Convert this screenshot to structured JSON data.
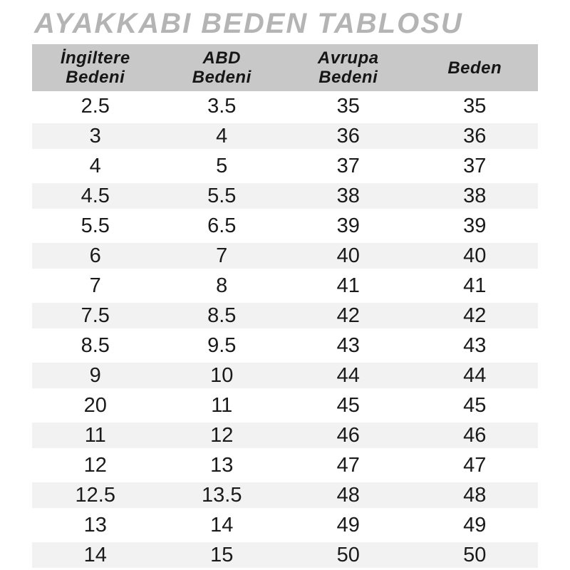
{
  "page": {
    "title": "AYAKKABI BEDEN TABLOSU"
  },
  "header": {
    "labels": [
      "İngiltere\nBedeni",
      "ABD\nBedeni",
      "Avrupa\nBedeni",
      "Beden"
    ]
  },
  "chart_data": {
    "type": "table",
    "title": "AYAKKABI BEDEN TABLOSU",
    "columns": [
      "İngiltere Bedeni",
      "ABD Bedeni",
      "Avrupa Bedeni",
      "Beden"
    ],
    "rows": [
      [
        "2.5",
        "3.5",
        "35",
        "35"
      ],
      [
        "3",
        "4",
        "36",
        "36"
      ],
      [
        "4",
        "5",
        "37",
        "37"
      ],
      [
        "4.5",
        "5.5",
        "38",
        "38"
      ],
      [
        "5.5",
        "6.5",
        "39",
        "39"
      ],
      [
        "6",
        "7",
        "40",
        "40"
      ],
      [
        "7",
        "8",
        "41",
        "41"
      ],
      [
        "7.5",
        "8.5",
        "42",
        "42"
      ],
      [
        "8.5",
        "9.5",
        "43",
        "43"
      ],
      [
        "9",
        "10",
        "44",
        "44"
      ],
      [
        "20",
        "11",
        "45",
        "45"
      ],
      [
        "11",
        "12",
        "46",
        "46"
      ],
      [
        "12",
        "13",
        "47",
        "47"
      ],
      [
        "12.5",
        "13.5",
        "48",
        "48"
      ],
      [
        "13",
        "14",
        "49",
        "49"
      ],
      [
        "14",
        "15",
        "50",
        "50"
      ]
    ],
    "layout_hints": {
      "striping": "even data rows shaded",
      "row_count": 16,
      "column_alignment": "center"
    }
  },
  "colors": {
    "title_text": "#b4b4b4",
    "header_bg": "#c8c8c8",
    "header_text": "#161616",
    "stripe_bg": "#f2f2f2",
    "body_text": "#1a1a1a"
  }
}
